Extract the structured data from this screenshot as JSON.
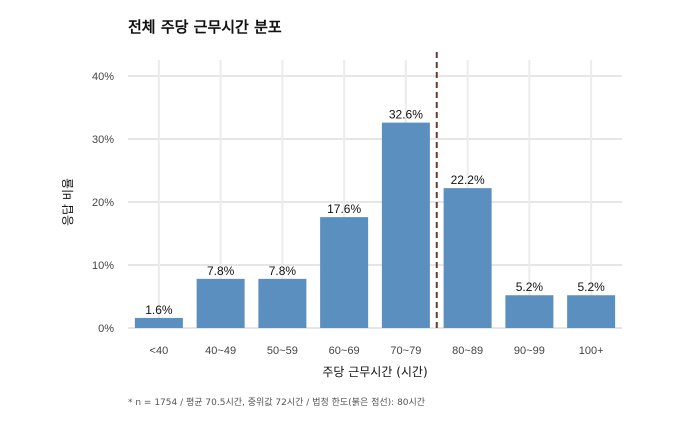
{
  "chart_data": {
    "type": "bar",
    "title": "전체 주당 근무시간 분포",
    "xlabel": "주당 근무시간 (시간)",
    "ylabel": "응답 비율",
    "categories": [
      "<40",
      "40~49",
      "50~59",
      "60~69",
      "70~79",
      "80~89",
      "90~99",
      "100+"
    ],
    "values": [
      1.6,
      7.8,
      7.8,
      17.6,
      32.6,
      22.2,
      5.2,
      5.2
    ],
    "data_labels": [
      "1.6%",
      "7.8%",
      "7.8%",
      "17.6%",
      "32.6%",
      "22.2%",
      "5.2%",
      "5.2%"
    ],
    "ylim": [
      0,
      40
    ],
    "yticks": [
      0,
      10,
      20,
      30,
      40
    ],
    "ytick_labels": [
      "0%",
      "10%",
      "20%",
      "30%",
      "40%"
    ],
    "grid": true,
    "reference_line": {
      "x_between": [
        "70~79",
        "80~89"
      ],
      "value_hours": 80,
      "style": "dashed"
    },
    "bar_color": "#5b8fc0",
    "reference_color": "#6b3a30",
    "footnote": "* n = 1754 / 평균 70.5시간, 중위값 72시간 / 법정 한도(붉은 점선): 80시간"
  }
}
